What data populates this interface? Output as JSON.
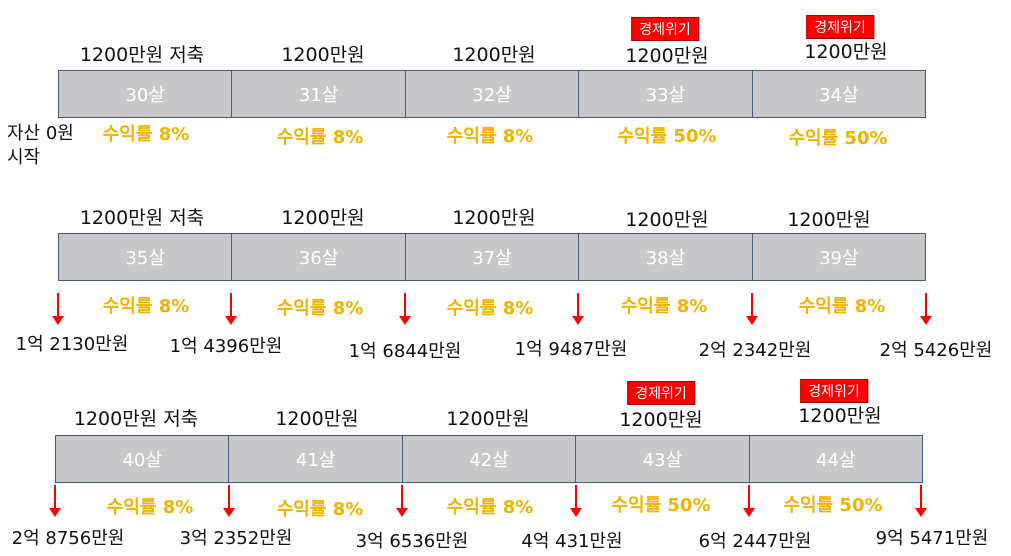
{
  "start_label_line1": "자산 0원",
  "start_label_line2": "시작",
  "rows": [
    {
      "savings": [
        "1200만원 저축",
        "1200만원",
        "1200만원",
        "1200만원",
        "1200만원"
      ],
      "crisis": [
        "",
        "",
        "",
        "경제위기",
        "경제위기"
      ],
      "ages": [
        "30살",
        "31살",
        "32살",
        "33살",
        "34살"
      ],
      "returns": [
        "수익률 8%",
        "수익률 8%",
        "수익률 8%",
        "수익률 50%",
        "수익률 50%"
      ],
      "assets": []
    },
    {
      "savings": [
        "1200만원 저축",
        "1200만원",
        "1200만원",
        "1200만원",
        "1200만원"
      ],
      "crisis": [
        "",
        "",
        "",
        "",
        ""
      ],
      "ages": [
        "35살",
        "36살",
        "37살",
        "38살",
        "39살"
      ],
      "returns": [
        "수익률 8%",
        "수익률 8%",
        "수익률 8%",
        "수익률 8%",
        "수익률 8%"
      ],
      "assets": [
        "1억 2130만원",
        "1억 4396만원",
        "1억 6844만원",
        "1억 9487만원",
        "2억 2342만원",
        "2억 5426만원"
      ]
    },
    {
      "savings": [
        "1200만원 저축",
        "1200만원",
        "1200만원",
        "1200만원",
        "1200만원"
      ],
      "crisis": [
        "",
        "",
        "",
        "경제위기",
        "경제위기"
      ],
      "ages": [
        "40살",
        "41살",
        "42살",
        "43살",
        "44살"
      ],
      "returns": [
        "수익률 8%",
        "수익률 8%",
        "수익률 8%",
        "수익률 50%",
        "수익률 50%"
      ],
      "assets": [
        "2억 8756만원",
        "3억 2352만원",
        "3억 6536만원",
        "4억 431만원",
        "6억 2447만원",
        "9억 5471만원"
      ]
    }
  ],
  "colors": {
    "cell_fill": "#c8c8cb",
    "return_text": "#f0b400",
    "crisis_fill": "#ff0000",
    "arrow": "#ff0000"
  }
}
